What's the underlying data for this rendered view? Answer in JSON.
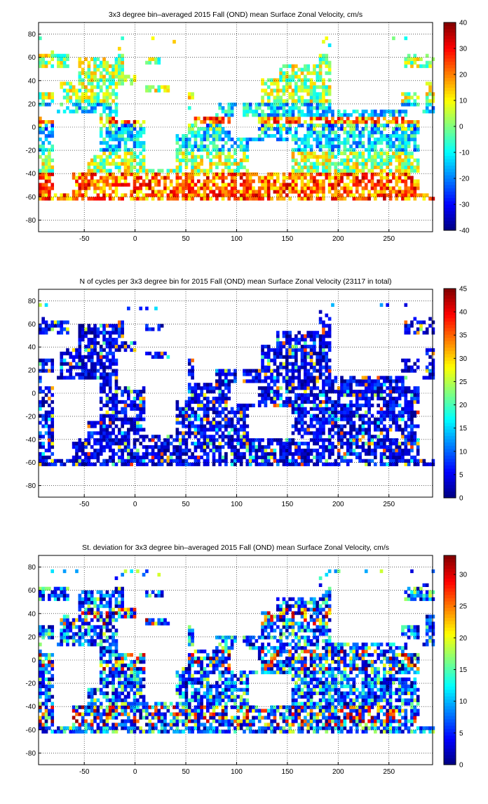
{
  "chart_data": [
    {
      "type": "heatmap",
      "title": "3x3 degree bin–averaged 2015 Fall (OND) mean Surface Zonal Velocity, cm/s",
      "xlabel": "",
      "ylabel": "",
      "xlim": [
        -95,
        293
      ],
      "ylim": [
        -90,
        90
      ],
      "x_ticks": [
        -50,
        0,
        50,
        100,
        150,
        200,
        250
      ],
      "y_ticks": [
        80,
        60,
        40,
        20,
        0,
        -20,
        -40,
        -60,
        -80
      ],
      "grid": true,
      "colorbar": {
        "min": -40,
        "max": 40,
        "ticks": [
          40,
          30,
          20,
          10,
          0,
          -10,
          -20,
          -30,
          -40
        ]
      },
      "bin_size_deg": 3,
      "field": "zonal_velocity"
    },
    {
      "type": "heatmap",
      "title": "N of cycles per 3x3 degree bin for 2015 Fall (OND) mean Surface Zonal Velocity (23117 in total)",
      "xlabel": "",
      "ylabel": "",
      "xlim": [
        -95,
        293
      ],
      "ylim": [
        -90,
        90
      ],
      "x_ticks": [
        -50,
        0,
        50,
        100,
        150,
        200,
        250
      ],
      "y_ticks": [
        80,
        60,
        40,
        20,
        0,
        -20,
        -40,
        -60,
        -80
      ],
      "grid": true,
      "colorbar": {
        "min": 0,
        "max": 45,
        "ticks": [
          45,
          40,
          35,
          30,
          25,
          20,
          15,
          10,
          5,
          0
        ]
      },
      "bin_size_deg": 3,
      "field": "cycle_count"
    },
    {
      "type": "heatmap",
      "title": "St. deviation for 3x3 degree bin–averaged 2015 Fall (OND) mean Surface Zonal Velocity, cm/s",
      "xlabel": "",
      "ylabel": "",
      "xlim": [
        -95,
        293
      ],
      "ylim": [
        -90,
        90
      ],
      "x_ticks": [
        -50,
        0,
        50,
        100,
        150,
        200,
        250
      ],
      "y_ticks": [
        80,
        60,
        40,
        20,
        0,
        -20,
        -40,
        -60,
        -80
      ],
      "grid": true,
      "colorbar": {
        "min": 0,
        "max": 33,
        "ticks": [
          30,
          25,
          20,
          15,
          10,
          5,
          0
        ]
      },
      "bin_size_deg": 3,
      "field": "std_deviation"
    }
  ],
  "colormap": "jet"
}
